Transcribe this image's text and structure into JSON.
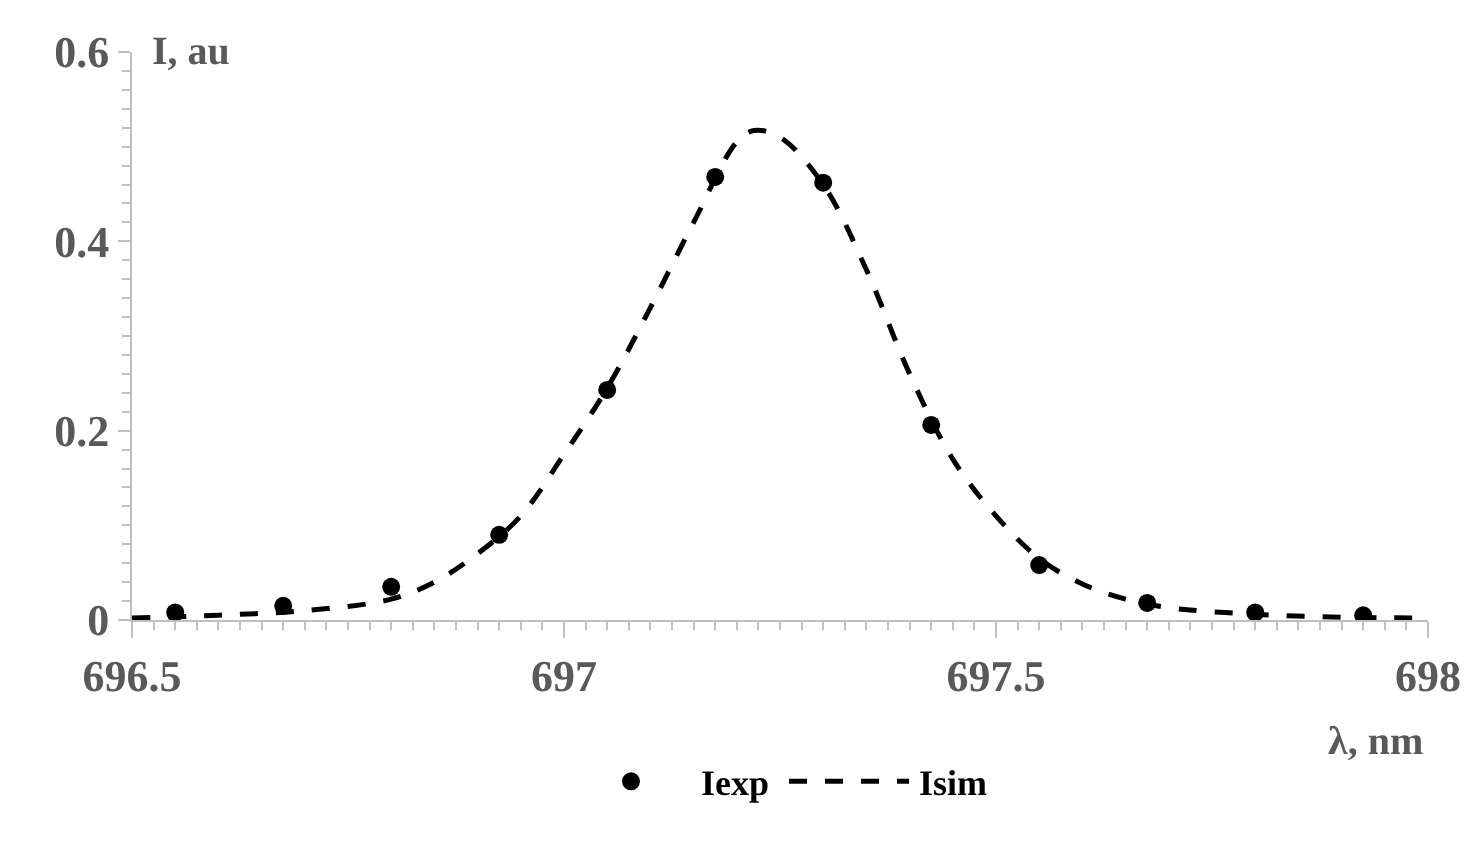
{
  "chart_data": {
    "type": "scatter",
    "xlabel": "λ, nm",
    "ylabel": "I, au",
    "xlim": [
      696.5,
      698
    ],
    "xticks": [
      696.5,
      697,
      697.5,
      698
    ],
    "ylim": [
      0,
      0.6
    ],
    "yticks": [
      0,
      {
        "value": 0.2,
        "label": "0.2"
      },
      {
        "value": 0.4,
        "label": "0.4"
      },
      {
        "value": 0.6,
        "label": "0.6"
      }
    ],
    "grid": false,
    "legend": "bottom",
    "series": [
      {
        "name": "Iexp",
        "marker": "circle",
        "color": "#000000",
        "x": [
          696.55,
          696.675,
          696.8,
          696.925,
          697.05,
          697.175,
          697.3,
          697.425,
          697.55,
          697.675,
          697.8,
          697.925
        ],
        "values": [
          0.008,
          0.015,
          0.035,
          0.09,
          0.243,
          0.468,
          0.462,
          0.206,
          0.058,
          0.018,
          0.008,
          0.005
        ]
      },
      {
        "name": "Isim",
        "type": "line",
        "line_style": "dashed",
        "color": "#000000",
        "x": [
          696.5,
          696.6,
          696.7,
          696.8,
          696.85,
          696.9,
          696.95,
          697.0,
          697.05,
          697.1,
          697.15,
          697.2,
          697.22,
          697.25,
          697.3,
          697.35,
          697.4,
          697.45,
          697.5,
          697.55,
          697.6,
          697.65,
          697.7,
          697.8,
          697.9,
          698
        ],
        "values": [
          0.002,
          0.005,
          0.01,
          0.022,
          0.04,
          0.07,
          0.11,
          0.175,
          0.245,
          0.33,
          0.42,
          0.505,
          0.517,
          0.51,
          0.46,
          0.37,
          0.26,
          0.17,
          0.11,
          0.065,
          0.038,
          0.022,
          0.013,
          0.006,
          0.003,
          0.002
        ]
      }
    ]
  }
}
